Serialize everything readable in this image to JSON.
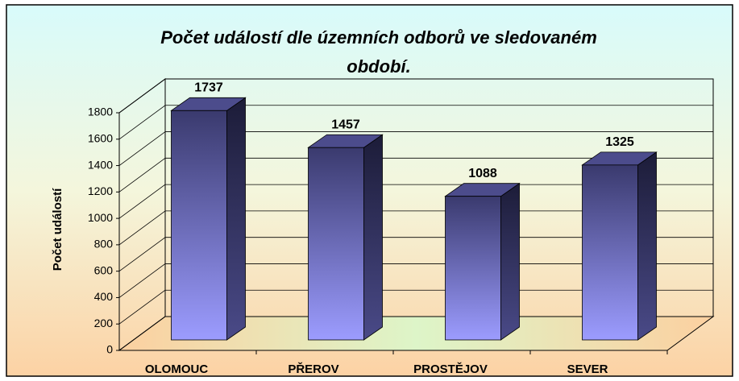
{
  "chart_data": {
    "type": "bar",
    "title": "Počet událostí dle územních odborů ve sledovaném období.",
    "y_label": "Počet událostí",
    "categories": [
      "OLOMOUC",
      "PŘEROV",
      "PROSTĚJOV",
      "SEVER"
    ],
    "values": [
      1737,
      1457,
      1088,
      1325
    ],
    "color": "#5a5aa8",
    "ylim": [
      0,
      1800
    ],
    "yticks": [
      0,
      200,
      400,
      600,
      800,
      1000,
      1200,
      1400,
      1600,
      1800
    ],
    "grid": true
  }
}
